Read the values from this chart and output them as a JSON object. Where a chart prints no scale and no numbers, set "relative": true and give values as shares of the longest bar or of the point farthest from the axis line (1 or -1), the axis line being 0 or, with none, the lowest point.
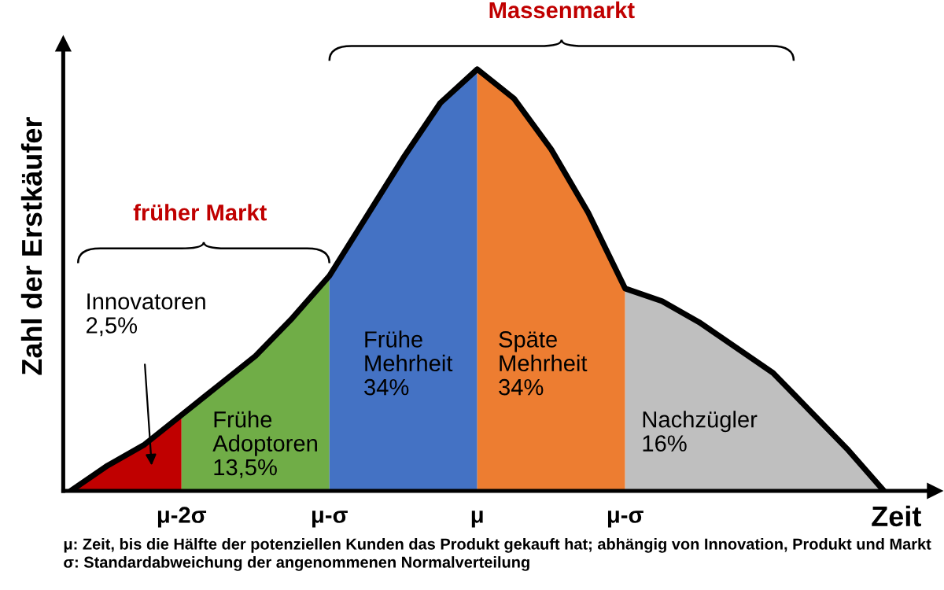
{
  "chart_data": {
    "type": "area",
    "relative": true,
    "xlabel": "Zeit",
    "ylabel": "Zahl der Erstkäufer",
    "categories": [
      null,
      null,
      null,
      "μ-2σ",
      null,
      null,
      null,
      "μ-σ",
      null,
      null,
      null,
      "μ",
      null,
      null,
      null,
      "μ-σ",
      null,
      null,
      null,
      null,
      null,
      null,
      null
    ],
    "series": [
      {
        "color": "#c00000",
        "values": [
          0,
          0.06,
          0.11,
          0.18,
          null,
          null,
          null,
          null,
          null,
          null,
          null,
          null,
          null,
          null,
          null,
          null,
          null,
          null,
          null,
          null,
          null,
          null,
          null
        ]
      },
      {
        "color": "#70ad47",
        "values": [
          null,
          null,
          null,
          0.18,
          0.25,
          0.32,
          0.41,
          0.51,
          null,
          null,
          null,
          null,
          null,
          null,
          null,
          null,
          null,
          null,
          null,
          null,
          null,
          null,
          null
        ]
      },
      {
        "color": "#4472c4",
        "values": [
          null,
          null,
          null,
          null,
          null,
          null,
          null,
          0.51,
          0.65,
          0.79,
          0.92,
          1,
          null,
          null,
          null,
          null,
          null,
          null,
          null,
          null,
          null,
          null,
          null
        ]
      },
      {
        "color": "#ed7d31",
        "values": [
          null,
          null,
          null,
          null,
          null,
          null,
          null,
          null,
          null,
          null,
          null,
          1,
          0.93,
          0.81,
          0.66,
          0.48,
          null,
          null,
          null,
          null,
          null,
          null,
          null
        ]
      },
      {
        "color": "#bfbfbf",
        "values": [
          null,
          null,
          null,
          null,
          null,
          null,
          null,
          null,
          null,
          null,
          null,
          null,
          null,
          null,
          null,
          0.48,
          0.45,
          0.4,
          0.34,
          0.28,
          0.19,
          0.1,
          0
        ]
      },
      {
        "type": "line",
        "color": "#000000",
        "values": [
          0,
          0.06,
          0.11,
          0.18,
          0.25,
          0.32,
          0.41,
          0.51,
          0.65,
          0.79,
          0.92,
          1,
          0.93,
          0.81,
          0.66,
          0.48,
          0.45,
          0.4,
          0.34,
          0.28,
          0.19,
          0.1,
          0
        ]
      }
    ],
    "annotations": [
      "Innovatoren\n2,5%",
      "Frühe\nAdoptoren\n13,5%",
      "Frühe\nMehrheit\n34%",
      "Späte\nMehrheit\n34%",
      "Nachzügler\n16%",
      "früher Markt",
      "Massenmarkt",
      "μ: Zeit, bis die Hälfte der potenziellen Kunden das Produkt gekauft hat; abhängig von Innovation, Produkt und Markt\nσ: Standardabweichung der angenommenen Normalverteilung"
    ],
    "grid": false,
    "legend": false
  }
}
